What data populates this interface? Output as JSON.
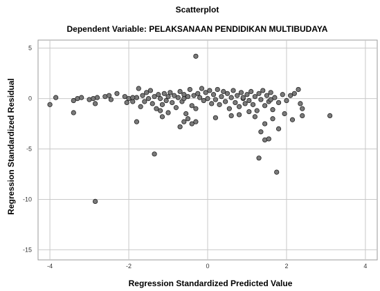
{
  "chart_data": {
    "type": "scatter",
    "title": "Scatterplot",
    "subtitle": "Dependent Variable: PELAKSANAAN  PENDIDIKAN MULTIBUDAYA",
    "xlabel": "Regression Standardized Predicted Value",
    "ylabel": "Regression Standardized Residual",
    "xlim": [
      -4.3,
      4.3
    ],
    "ylim": [
      -16.0,
      5.8
    ],
    "xticks": [
      -4,
      -2,
      0,
      2,
      4
    ],
    "yticks": [
      5,
      0,
      -5,
      -10,
      -15
    ],
    "xtick_labels": [
      "-4",
      "-2",
      "0",
      "2",
      "4"
    ],
    "ytick_labels": [
      "5",
      "0",
      "-5",
      "-10",
      "-15"
    ],
    "grid": true,
    "points": [
      [
        -4.0,
        -0.6
      ],
      [
        -3.85,
        0.1
      ],
      [
        -3.4,
        -0.2
      ],
      [
        -3.4,
        -1.4
      ],
      [
        -3.3,
        0.0
      ],
      [
        -3.2,
        0.1
      ],
      [
        -3.0,
        -0.1
      ],
      [
        -2.9,
        0.0
      ],
      [
        -2.85,
        -0.5
      ],
      [
        -2.8,
        0.1
      ],
      [
        -2.6,
        0.2
      ],
      [
        -2.5,
        0.3
      ],
      [
        -2.45,
        -0.1
      ],
      [
        -2.3,
        0.5
      ],
      [
        -2.1,
        0.2
      ],
      [
        -2.05,
        -0.4
      ],
      [
        -2.0,
        0.0
      ],
      [
        -1.9,
        -0.3
      ],
      [
        -1.8,
        0.1
      ],
      [
        -1.75,
        1.0
      ],
      [
        -1.7,
        -0.8
      ],
      [
        -1.65,
        0.3
      ],
      [
        -1.6,
        -0.3
      ],
      [
        -1.55,
        0.6
      ],
      [
        -1.5,
        0.0
      ],
      [
        -1.45,
        0.8
      ],
      [
        -1.4,
        -0.5
      ],
      [
        -1.35,
        0.2
      ],
      [
        -1.3,
        -1.0
      ],
      [
        -1.25,
        0.4
      ],
      [
        -1.2,
        0.0
      ],
      [
        -1.15,
        -0.6
      ],
      [
        -1.1,
        0.5
      ],
      [
        -1.05,
        -0.2
      ],
      [
        -1.0,
        0.2
      ],
      [
        -0.95,
        0.6
      ],
      [
        -0.9,
        -0.4
      ],
      [
        -0.85,
        0.3
      ],
      [
        -0.8,
        -0.9
      ],
      [
        -0.75,
        0.1
      ],
      [
        -0.7,
        0.7
      ],
      [
        -0.65,
        -0.3
      ],
      [
        -0.6,
        0.4
      ],
      [
        -0.55,
        -1.5
      ],
      [
        -0.5,
        0.2
      ],
      [
        -0.45,
        0.9
      ],
      [
        -0.4,
        -0.7
      ],
      [
        -0.35,
        0.3
      ],
      [
        -0.3,
        -1.0
      ],
      [
        -0.25,
        0.5
      ],
      [
        -0.2,
        0.1
      ],
      [
        -0.15,
        1.0
      ],
      [
        -0.1,
        -0.2
      ],
      [
        -0.05,
        0.6
      ],
      [
        0.0,
        0.0
      ],
      [
        0.05,
        0.8
      ],
      [
        0.1,
        -0.5
      ],
      [
        0.15,
        0.4
      ],
      [
        0.2,
        -0.1
      ],
      [
        0.25,
        0.9
      ],
      [
        0.3,
        -0.6
      ],
      [
        0.35,
        0.2
      ],
      [
        0.4,
        0.7
      ],
      [
        0.45,
        -0.3
      ],
      [
        0.5,
        0.5
      ],
      [
        0.55,
        -1.0
      ],
      [
        0.6,
        0.1
      ],
      [
        0.65,
        0.8
      ],
      [
        0.7,
        -0.4
      ],
      [
        0.75,
        0.3
      ],
      [
        0.8,
        -0.8
      ],
      [
        0.85,
        0.6
      ],
      [
        0.9,
        0.0
      ],
      [
        0.95,
        -0.5
      ],
      [
        1.0,
        0.4
      ],
      [
        1.05,
        -0.2
      ],
      [
        1.1,
        0.7
      ],
      [
        1.15,
        -0.6
      ],
      [
        1.2,
        0.2
      ],
      [
        1.25,
        -1.2
      ],
      [
        1.3,
        0.5
      ],
      [
        1.35,
        -0.1
      ],
      [
        1.4,
        0.8
      ],
      [
        1.45,
        -0.7
      ],
      [
        1.5,
        0.3
      ],
      [
        1.55,
        -0.3
      ],
      [
        1.6,
        0.6
      ],
      [
        1.65,
        -1.1
      ],
      [
        1.7,
        0.1
      ],
      [
        1.8,
        -0.4
      ],
      [
        1.9,
        0.4
      ],
      [
        2.0,
        -0.2
      ],
      [
        2.1,
        0.3
      ],
      [
        2.2,
        0.5
      ],
      [
        2.3,
        0.9
      ],
      [
        2.35,
        -0.5
      ],
      [
        -1.9,
        0.1
      ],
      [
        -0.6,
        0.0
      ],
      [
        0.9,
        0.1
      ],
      [
        1.6,
        -0.1
      ],
      [
        -1.8,
        -2.3
      ],
      [
        -0.6,
        -2.3
      ],
      [
        -0.5,
        -2.0
      ],
      [
        -0.4,
        -2.5
      ],
      [
        -0.3,
        -2.3
      ],
      [
        -1.15,
        -1.8
      ],
      [
        -1.2,
        -1.2
      ],
      [
        -0.7,
        -2.8
      ],
      [
        -1.0,
        -1.4
      ],
      [
        0.2,
        -1.9
      ],
      [
        0.6,
        -1.7
      ],
      [
        0.8,
        -1.6
      ],
      [
        1.2,
        -1.8
      ],
      [
        1.05,
        -1.3
      ],
      [
        1.45,
        -2.5
      ],
      [
        1.35,
        -3.3
      ],
      [
        1.45,
        -4.1
      ],
      [
        1.55,
        -4.0
      ],
      [
        1.8,
        -3.0
      ],
      [
        1.65,
        -2.0
      ],
      [
        1.95,
        -1.5
      ],
      [
        2.15,
        -2.1
      ],
      [
        2.4,
        -1.7
      ],
      [
        2.4,
        -1.0
      ],
      [
        3.1,
        -1.7
      ],
      [
        -0.3,
        4.2
      ],
      [
        -1.35,
        -5.5
      ],
      [
        1.3,
        -5.9
      ],
      [
        1.75,
        -7.3
      ],
      [
        -2.85,
        -10.2
      ]
    ]
  }
}
